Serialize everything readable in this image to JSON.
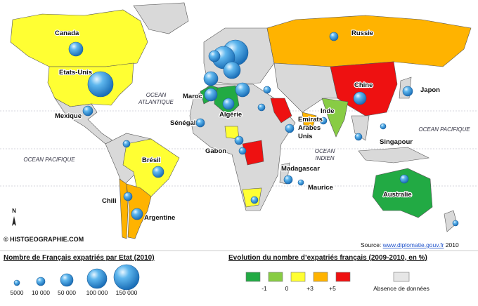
{
  "map": {
    "countries": [
      "Canada",
      "Russie",
      "Etats-Unis",
      "Maroc",
      "Chine",
      "Japon",
      "Mexique",
      "Sénégal",
      "Algérie",
      "Inde",
      "Gabon",
      "Singapour",
      "Brésil",
      "Madagascar",
      "Maurice",
      "Australie",
      "Chili",
      "Argentine"
    ],
    "emirats": [
      "Emirats",
      "Arabes",
      "Unis"
    ],
    "oceans": {
      "atlantique": [
        "OCEAN",
        "ATLANTIQUE"
      ],
      "pacifique_west": "OCEAN PACIFIQUE",
      "indien": [
        "OCEAN",
        "INDIEN"
      ],
      "pacifique_east": "OCEAN PACIFIQUE"
    },
    "north": "N",
    "credit": "© HISTGEOGRAPHIE.COM",
    "source": {
      "prefix": "Source: ",
      "link": "www.diplomatie.gouv.fr",
      "suffix": " 2010"
    }
  },
  "legend": {
    "size_title": "Nombre de Français expatriés par Etat (2010)",
    "sizes": [
      "5000",
      "10 000",
      "50 000",
      "100 000",
      "150 000"
    ],
    "change_title": "Evolution du nombre d’expatriés français (2009-2010, en %)",
    "changes": [
      "-1",
      "0",
      "+3",
      "+5"
    ],
    "no_data": "Absence de données"
  }
}
